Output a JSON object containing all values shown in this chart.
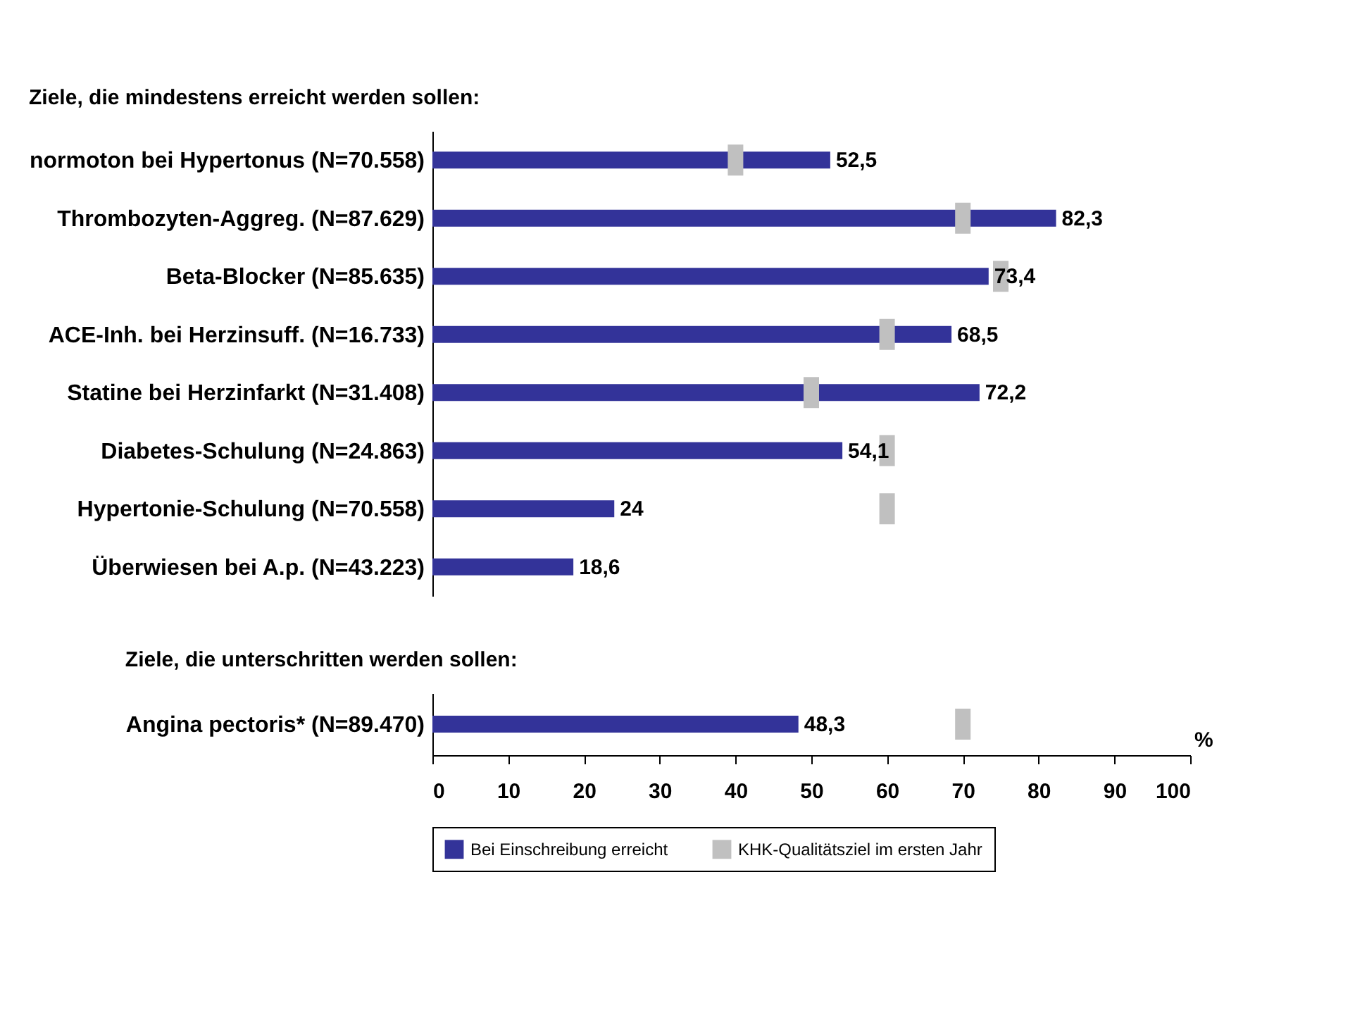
{
  "chart_data": [
    {
      "type": "bar",
      "orientation": "horizontal",
      "title": "Ziele, die mindestens erreicht werden sollen:",
      "categories": [
        "normoton bei Hypertonus (N=70.558)",
        "Thrombozyten-Aggreg. (N=87.629)",
        "Beta-Blocker (N=85.635)",
        "ACE-Inh. bei Herzinsuff. (N=16.733)",
        "Statine bei Herzinfarkt (N=31.408)",
        "Diabetes-Schulung (N=24.863)",
        "Hypertonie-Schulung (N=70.558)",
        "Überwiesen bei A.p. (N=43.223)"
      ],
      "series": [
        {
          "type": "bar",
          "color": "#333399",
          "values": [
            52.5,
            82.3,
            73.4,
            68.5,
            72.2,
            54.1,
            24,
            18.6
          ],
          "value_labels": [
            "52,5",
            "82,3",
            "73,4",
            "68,5",
            "72,2",
            "54,1",
            "24",
            "18,6"
          ]
        },
        {
          "type": "scatter",
          "color": "#c0c0c0",
          "values": [
            40,
            70,
            75,
            60,
            50,
            60,
            60,
            null
          ]
        }
      ],
      "xlim": [
        0,
        100
      ],
      "xticks": [
        0,
        10,
        20,
        30,
        40,
        50,
        60,
        70,
        80,
        90,
        100
      ],
      "tick_labels": "y",
      "grid": false
    },
    {
      "type": "bar",
      "orientation": "horizontal",
      "title": "Ziele, die unterschritten werden sollen:",
      "xlabel": "%",
      "categories": [
        "Angina pectoris* (N=89.470)"
      ],
      "series": [
        {
          "name": "Bei Einschreibung erreicht",
          "type": "bar",
          "color": "#333399",
          "values": [
            48.3
          ],
          "value_labels": [
            "48,3"
          ]
        },
        {
          "name": "KHK-Qualitätsziel im ersten Jahr",
          "type": "scatter",
          "color": "#c0c0c0",
          "values": [
            70
          ]
        }
      ],
      "xlim": [
        0,
        100
      ],
      "xticks": [
        0,
        10,
        20,
        30,
        40,
        50,
        60,
        70,
        80,
        90,
        100
      ],
      "grid": false,
      "legend": "bottom"
    }
  ]
}
